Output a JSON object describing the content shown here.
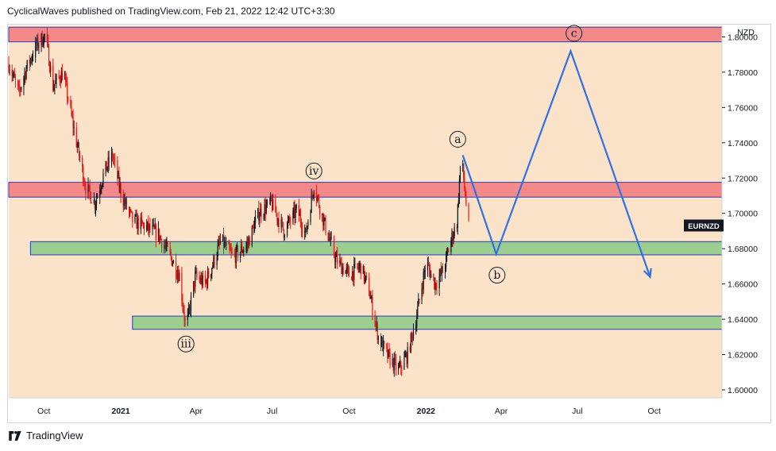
{
  "header": {
    "published_line": "CyclicalWaves published on TradingView.com, Feb 21, 2022 12:42 UTC+3:30"
  },
  "footer": {
    "brand": "TradingView"
  },
  "colors": {
    "background": "#fbe3c9",
    "bull_candle": "#131722",
    "bear_candle": "#e31b1b",
    "resistance_zone": "#f4898a",
    "support_zone": "#9cce8f",
    "zone_border": "#2e3bb5",
    "projection": "#2f6fe8",
    "symbol_badge": "#131722"
  },
  "chart_data": {
    "type": "candlestick",
    "symbol": "EURNZD",
    "currency": "NZD",
    "x_ticks": [
      "Oct",
      "2021",
      "Apr",
      "Jul",
      "Oct",
      "2022",
      "Apr",
      "Jul",
      "Oct"
    ],
    "x_tick_dates": [
      "2020-10-01",
      "2021-01-01",
      "2021-04-01",
      "2021-07-01",
      "2021-10-01",
      "2022-01-01",
      "2022-04-01",
      "2022-07-01",
      "2022-10-01"
    ],
    "y_ticks": [
      "1.80000",
      "1.78000",
      "1.76000",
      "1.74000",
      "1.72000",
      "1.70000",
      "1.68000",
      "1.66000",
      "1.64000",
      "1.62000",
      "1.60000"
    ],
    "ylim": [
      1.5955,
      1.8065
    ],
    "price_path": [
      [
        "2020-08-20",
        1.785
      ],
      [
        "2020-09-01",
        1.768
      ],
      [
        "2020-09-10",
        1.782
      ],
      [
        "2020-09-22",
        1.795
      ],
      [
        "2020-10-03",
        1.801
      ],
      [
        "2020-10-12",
        1.772
      ],
      [
        "2020-10-24",
        1.78
      ],
      [
        "2020-11-07",
        1.745
      ],
      [
        "2020-11-20",
        1.715
      ],
      [
        "2020-12-01",
        1.706
      ],
      [
        "2020-12-12",
        1.723
      ],
      [
        "2020-12-22",
        1.733
      ],
      [
        "2021-01-02",
        1.71
      ],
      [
        "2021-01-15",
        1.696
      ],
      [
        "2021-02-01",
        1.692
      ],
      [
        "2021-02-15",
        1.688
      ],
      [
        "2021-03-01",
        1.676
      ],
      [
        "2021-03-12",
        1.665
      ],
      [
        "2021-03-20",
        1.6342
      ],
      [
        "2021-03-31",
        1.664
      ],
      [
        "2021-04-12",
        1.66
      ],
      [
        "2021-04-20",
        1.67
      ],
      [
        "2021-05-01",
        1.685
      ],
      [
        "2021-05-15",
        1.675
      ],
      [
        "2021-06-01",
        1.682
      ],
      [
        "2021-06-15",
        1.7
      ],
      [
        "2021-06-30",
        1.706
      ],
      [
        "2021-07-15",
        1.69
      ],
      [
        "2021-07-31",
        1.702
      ],
      [
        "2021-08-10",
        1.688
      ],
      [
        "2021-08-20",
        1.716
      ],
      [
        "2021-09-01",
        1.695
      ],
      [
        "2021-09-15",
        1.674
      ],
      [
        "2021-10-01",
        1.665
      ],
      [
        "2021-10-15",
        1.67
      ],
      [
        "2021-10-25",
        1.656
      ],
      [
        "2021-11-05",
        1.63
      ],
      [
        "2021-11-15",
        1.62
      ],
      [
        "2021-11-29",
        1.611
      ],
      [
        "2021-12-10",
        1.62
      ],
      [
        "2021-12-20",
        1.64
      ],
      [
        "2022-01-01",
        1.672
      ],
      [
        "2022-01-12",
        1.66
      ],
      [
        "2022-01-22",
        1.668
      ],
      [
        "2022-01-31",
        1.685
      ],
      [
        "2022-02-07",
        1.695
      ],
      [
        "2022-02-12",
        1.734
      ],
      [
        "2022-02-16",
        1.715
      ],
      [
        "2022-02-21",
        1.692
      ]
    ],
    "zones": [
      {
        "kind": "resistance",
        "from": "2020-08-20",
        "to": null,
        "low": 1.7972,
        "high": 1.8055
      },
      {
        "kind": "resistance",
        "from": "2020-08-20",
        "to": null,
        "low": 1.7092,
        "high": 1.7176
      },
      {
        "kind": "support",
        "from": "2020-09-15",
        "to": null,
        "low": 1.6765,
        "high": 1.684
      },
      {
        "kind": "support",
        "from": "2021-01-15",
        "to": null,
        "low": 1.6343,
        "high": 1.6418
      }
    ],
    "projection": [
      [
        "2022-02-14",
        1.733
      ],
      [
        "2022-03-26",
        1.677
      ],
      [
        "2022-06-23",
        1.792
      ],
      [
        "2022-09-26",
        1.664
      ]
    ],
    "wave_labels": [
      {
        "text": "iii",
        "date": "2021-03-20",
        "price": 1.626,
        "side": "below"
      },
      {
        "text": "iv",
        "date": "2021-08-20",
        "price": 1.724,
        "side": "above"
      },
      {
        "text": "a",
        "date": "2022-02-08",
        "price": 1.742,
        "side": "above"
      },
      {
        "text": "b",
        "date": "2022-03-27",
        "price": 1.665,
        "side": "below"
      },
      {
        "text": "c",
        "date": "2022-06-27",
        "price": 1.802,
        "side": "above"
      }
    ]
  }
}
